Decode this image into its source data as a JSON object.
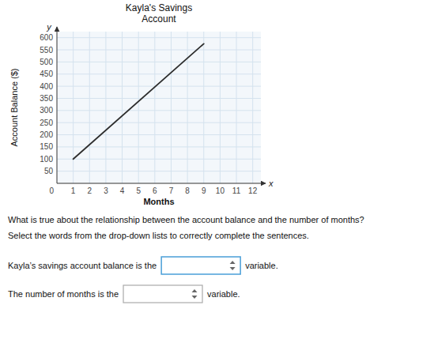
{
  "chart_data": {
    "type": "line",
    "title": "Kayla's Savings\nAccount",
    "x_label": "Months",
    "y_label": "Account Balance ($)",
    "x": [
      1,
      9
    ],
    "series": [
      {
        "values": [
          100,
          575
        ],
        "color": "#2d2d2d"
      }
    ],
    "xlim": [
      0,
      12.5
    ],
    "ylim": [
      0,
      625
    ],
    "xticks": [
      1,
      2,
      3,
      4,
      5,
      6,
      7,
      8,
      9,
      10,
      11,
      12
    ],
    "yticks": [
      50,
      100,
      150,
      200,
      250,
      300,
      350,
      400,
      450,
      500,
      550,
      600
    ],
    "grid": true,
    "annotations": [
      "0",
      "x",
      "y",
      "What is true about the relationship between the account balance and the number of months?",
      "Select the words from the drop-down lists to correctly complete the sentences.",
      "Kayla’s savings account balance is the",
      "variable.",
      "The number of months is the",
      "variable."
    ]
  }
}
